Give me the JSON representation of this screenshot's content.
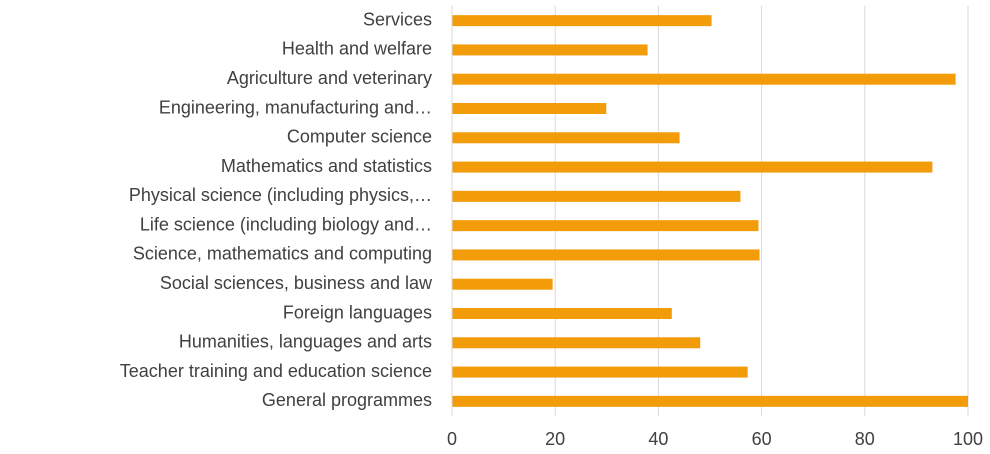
{
  "chart_data": {
    "type": "bar",
    "orientation": "horizontal",
    "categories": [
      "Services",
      "Health and welfare",
      "Agriculture and veterinary",
      "Engineering, manufacturing and…",
      "Computer science",
      "Mathematics and statistics",
      "Physical science (including physics,…",
      "Life science (including biology and…",
      "Science, mathematics and computing",
      "Social sciences, business and law",
      "Foreign languages",
      "Humanities, languages and arts",
      "Teacher training and education science",
      "General programmes"
    ],
    "values": [
      50.3,
      37.9,
      97.6,
      29.9,
      44.1,
      93.1,
      55.9,
      59.4,
      59.6,
      19.5,
      42.6,
      48.1,
      57.3,
      100
    ],
    "color": "#f39c0a",
    "xlim": [
      0,
      100
    ],
    "xticks": [
      0,
      20,
      40,
      60,
      80,
      100
    ],
    "grid": true
  }
}
